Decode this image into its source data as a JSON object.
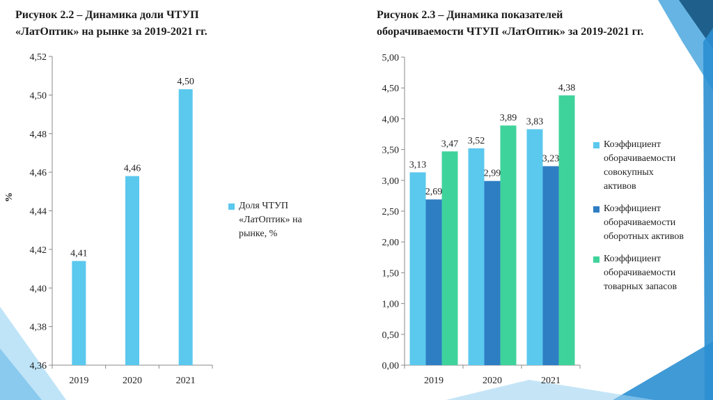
{
  "colors": {
    "light_blue": "#5BC8EE",
    "dark_blue": "#2E7EC3",
    "green": "#3FD39C",
    "decor_blue": "#2B8FD1",
    "decor_dark": "#1F5F8B",
    "decor_light": "#BFE4F7"
  },
  "chart_data": [
    {
      "type": "bar",
      "title": "Рисунок 2.2 – Динамика доли ЧТУП «ЛатОптик» на рынке за 2019-2021 гг.",
      "title_lines": [
        "Рисунок 2.2 – Динамика доли ЧТУП",
        "«ЛатОптик» на рынке за 2019-2021 гг."
      ],
      "categories": [
        "2019",
        "2020",
        "2021"
      ],
      "series": [
        {
          "name": "Доля ЧТУП «ЛатОптик» на рынке, %",
          "legend_text": "Доля ЧТУП\n«ЛатОптик» на\nрынке, %",
          "values": [
            4.414,
            4.458,
            4.503
          ],
          "labels": [
            "4,41",
            "4,46",
            "4,50"
          ],
          "color": "#5BC8EE"
        }
      ],
      "ylabel": "%",
      "xlabel": "",
      "ylim": [
        4.36,
        4.52
      ],
      "yticks": [
        "4,36",
        "4,38",
        "4,40",
        "4,42",
        "4,44",
        "4,46",
        "4,48",
        "4,50",
        "4,52"
      ],
      "ytick_values": [
        4.36,
        4.38,
        4.4,
        4.42,
        4.44,
        4.46,
        4.48,
        4.5,
        4.52
      ],
      "grid": false,
      "legend_position": "right"
    },
    {
      "type": "bar",
      "title": "Рисунок 2.3 – Динамика показателей оборачиваемости ЧТУП «ЛатОптик» за 2019-2021 гг.",
      "title_lines": [
        "Рисунок 2.3 – Динамика показателей",
        "оборачиваемости ЧТУП «ЛатОптик» за 2019-2021 гг."
      ],
      "categories": [
        "2019",
        "2020",
        "2021"
      ],
      "series": [
        {
          "name": "Коэффициент оборачиваемости совокупных активов",
          "legend_text": "Коэффициент\nоборачиваемости\nсовокупных\nактивов",
          "values": [
            3.13,
            3.52,
            3.83
          ],
          "labels": [
            "3,13",
            "3,52",
            "3,83"
          ],
          "color": "#5BC8EE"
        },
        {
          "name": "Коэффициент оборачиваемости оборотных активов",
          "legend_text": "Коэффициент\nоборачиваемости\nоборотных активов",
          "values": [
            2.69,
            2.99,
            3.23
          ],
          "labels": [
            "2,69",
            "2,99",
            "3,23"
          ],
          "color": "#2E7EC3"
        },
        {
          "name": "Коэффициент оборачиваемости товарных запасов",
          "legend_text": "Коэффициент\nоборачиваемости\nтоварных запасов",
          "values": [
            3.47,
            3.89,
            4.38
          ],
          "labels": [
            "3,47",
            "3,89",
            "4,38"
          ],
          "color": "#3FD39C"
        }
      ],
      "ylim": [
        0,
        5
      ],
      "yticks": [
        "0,00",
        "0,50",
        "1,00",
        "1,50",
        "2,00",
        "2,50",
        "3,00",
        "3,50",
        "4,00",
        "4,50",
        "5,00"
      ],
      "ytick_values": [
        0,
        0.5,
        1,
        1.5,
        2,
        2.5,
        3,
        3.5,
        4,
        4.5,
        5
      ],
      "grid": false,
      "legend_position": "right"
    }
  ]
}
